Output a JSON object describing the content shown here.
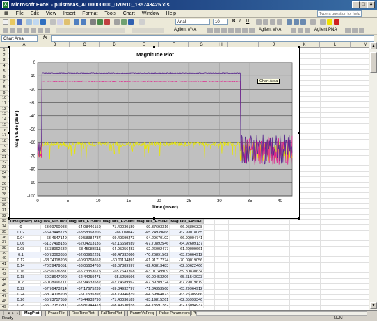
{
  "window": {
    "title": "Microsoft Excel - pulsmeas_AL00000000_070910_135743425.xls",
    "app_icon": "excel-icon"
  },
  "menu": [
    "File",
    "Edit",
    "View",
    "Insert",
    "Format",
    "Tools",
    "Chart",
    "Window",
    "Help"
  ],
  "help_placeholder": "Type a question for help",
  "toolbar": {
    "font": "Arial",
    "font_size": "10",
    "agilent1": "Agilent VNA",
    "agilent2": "Agilent VNA",
    "agilent3": "Agilent PNA"
  },
  "formula": {
    "namebox": "Chart Area",
    "fx": "fx"
  },
  "grid": {
    "columns": [
      "A",
      "B",
      "C",
      "D",
      "E",
      "F",
      "G",
      "H",
      "I",
      "J",
      "K",
      "L",
      "M"
    ],
    "rows": [
      "1",
      "2",
      "3",
      "4",
      "5",
      "6",
      "7",
      "8",
      "9",
      "10",
      "11",
      "12",
      "13",
      "14",
      "15",
      "16",
      "17",
      "18",
      "19",
      "20",
      "21",
      "22",
      "23",
      "24",
      "25",
      "26",
      "27",
      "28",
      "29",
      "30",
      "31",
      "32",
      "33",
      "34",
      "35",
      "36",
      "37",
      "38",
      "39",
      "40",
      "41",
      "42",
      "43",
      "44",
      "45",
      "46",
      "47",
      "48",
      "49"
    ],
    "chart_row_label": "MagPlot",
    "header_row": [
      "Time (msec)",
      "MagData_F05 0P0",
      "MagData_F1S0P0",
      "MagData_F2S0P0",
      "MagData_F3S0P0",
      "MagData_F4S0P0"
    ],
    "data_rows": [
      [
        "0",
        "-63.69760988",
        "-64.08446159",
        "-71.40030189",
        "-69.37693316",
        "-66.95896328"
      ],
      [
        "0.02",
        "-56.43448723",
        "-58.58368206",
        "-66.108042",
        "-65.24939668",
        "-62.99018085"
      ],
      [
        "0.04",
        "-63.4547149",
        "-69.58384787",
        "-69.49699273",
        "-64.29670102",
        "-66.90004741"
      ],
      [
        "0.06",
        "-61.37498136",
        "-62.04213136",
        "-62.16658939",
        "-67.70892546",
        "-64.92609137"
      ],
      [
        "0.08",
        "-65.38962632",
        "-63.45083611",
        "-64.95056483",
        "-62.26002477",
        "-61.29009661"
      ],
      [
        "0.1",
        "-60.73063356",
        "-62.60962231",
        "-68.47332086",
        "-70.26891562",
        "-63.26664912"
      ],
      [
        "0.12",
        "-63.74118208",
        "-60.90768652",
        "-60.01134891",
        "-61.91717274",
        "-70.09019056"
      ],
      [
        "0.14",
        "-70.59479051",
        "-63.05604768",
        "-63.07889997",
        "-62.43813483",
        "-62.50622466"
      ],
      [
        "0.16",
        "-62.96076881",
        "-65.73353615",
        "-65.7643268",
        "-63.01749909",
        "-59.80830634"
      ],
      [
        "0.18",
        "-60.28647029",
        "-62.44259471",
        "-65.5259506",
        "-60.90453206",
        "-65.61543023"
      ],
      [
        "0.2",
        "-60.08996717",
        "-57.94633582",
        "-62.74689957",
        "-67.89209724",
        "-67.29019619"
      ],
      [
        "0.22",
        "-67.76473214",
        "-67.17675239",
        "-69.34932797",
        "-71.34353568",
        "-63.29964912"
      ],
      [
        "0.24",
        "-63.74118208",
        "-61.1535397",
        "-63.79946879",
        "-64.69964073",
        "-63.26305966"
      ],
      [
        "0.26",
        "-65.73757359",
        "-75.44933798",
        "-71.40030189",
        "-63.19815261",
        "-62.65993346"
      ],
      [
        "0.28",
        "-65.13157211",
        "-63.81944413",
        "-68.49630978",
        "-64.73591282",
        "-62.16094937"
      ]
    ]
  },
  "sheets": [
    "MagPlot",
    "PhasePlot",
    "RiseTimePlot",
    "FallTimePlot",
    "ParamVsFreq",
    "Pulse Parameters",
    "Phase Dat"
  ],
  "active_sheet": "MagPlot",
  "status": {
    "left": "Ready",
    "right": "NUM"
  },
  "chart_data": {
    "type": "line",
    "title": "Magnitude Plot",
    "xlabel": "Time (msec)",
    "ylabel": "Magnitude (dBm)",
    "xlim": [
      0,
      42
    ],
    "ylim": [
      -100,
      0
    ],
    "xticks": [
      "0",
      "5",
      "10",
      "15",
      "20",
      "25",
      "30",
      "35",
      "40"
    ],
    "yticks": [
      "0",
      "-10",
      "-20",
      "-30",
      "-40",
      "-50",
      "-60",
      "-70",
      "-80",
      "-90",
      "-100"
    ],
    "grid": true,
    "chart_area_label": "Chart Area",
    "series": [
      {
        "color": "#5b2b8f",
        "level_on": -8,
        "level_off": -65,
        "x_on": 0.7,
        "x_off": 33.5
      },
      {
        "color": "#e0208a",
        "level_on": -14,
        "level_off": -66,
        "x_on": 0.7,
        "x_off": 33.5
      },
      {
        "color": "#e8e800",
        "level_on": -61,
        "level_off": -66,
        "x_on": 0.7,
        "x_off": 33.5
      }
    ]
  }
}
